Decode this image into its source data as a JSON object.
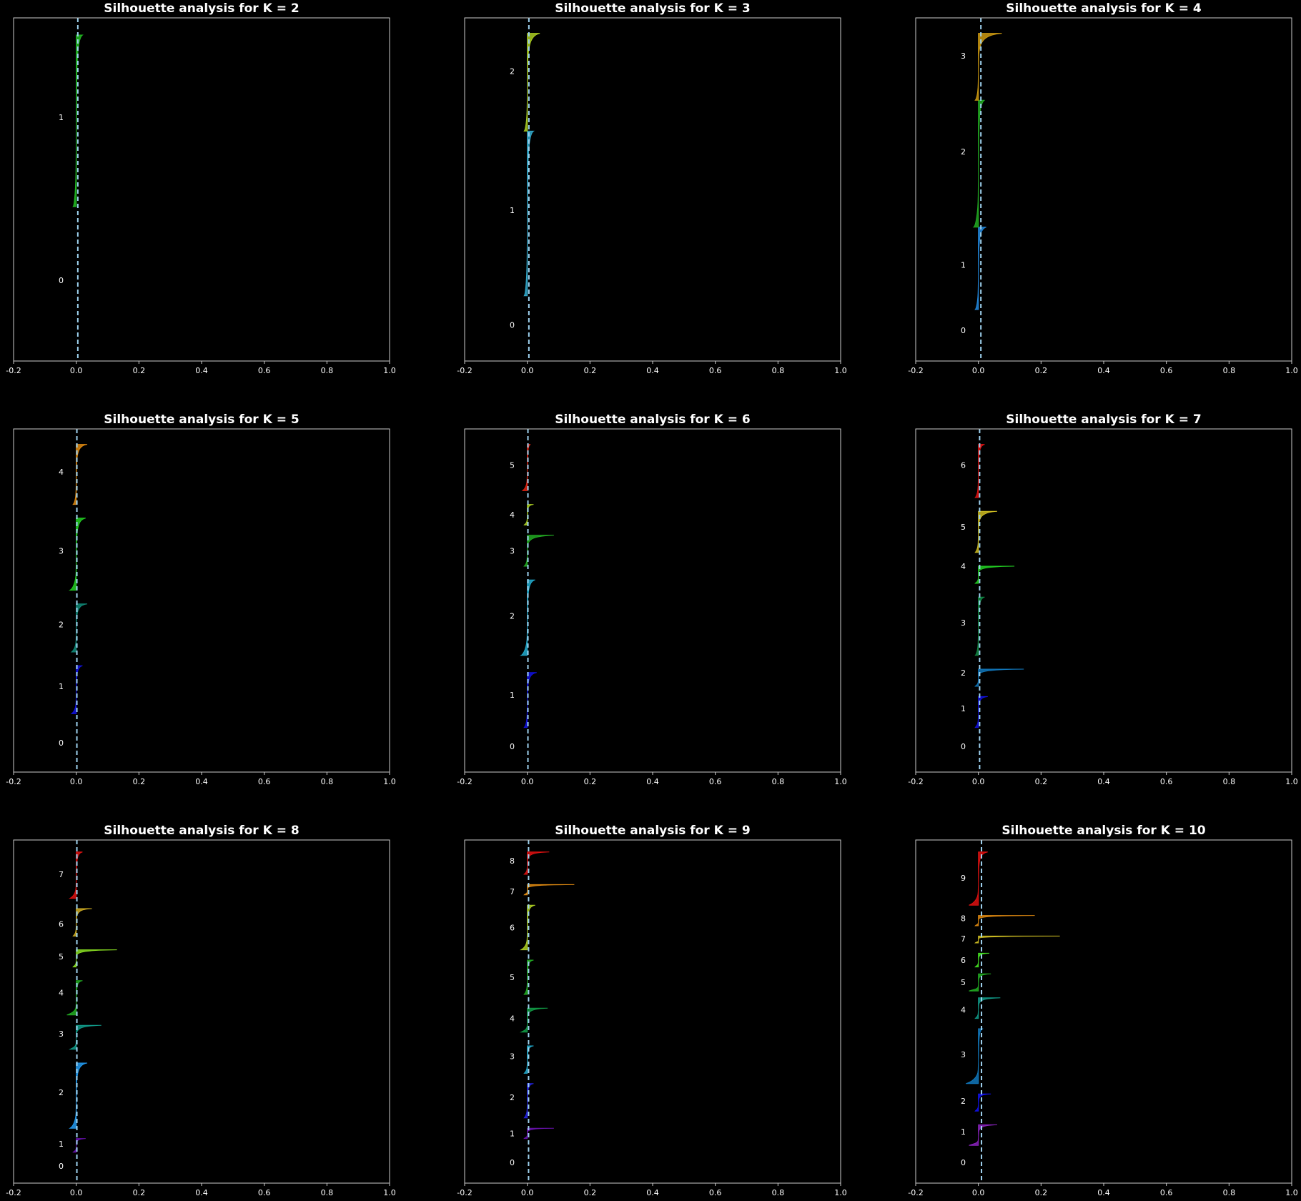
{
  "chart_data": [
    {
      "type": "area",
      "title": "Silhouette analysis for K = 2",
      "xlim": [
        -0.2,
        1.0
      ],
      "xticks": [
        "-0.2",
        "0.0",
        "0.2",
        "0.4",
        "0.6",
        "0.8",
        "1.0"
      ],
      "avg_line_x": 0.005,
      "avg_line_style": "dashed",
      "clusters": [
        {
          "label": "0",
          "label_y": 0.235,
          "color": "#3a0066",
          "y0": 0.05,
          "y1": 0.45,
          "s_max": 0.0,
          "s_min": 0.0
        },
        {
          "label": "1",
          "label_y": 0.71,
          "color": "#22bb22",
          "y0": 0.45,
          "y1": 0.95,
          "s_max": 0.02,
          "s_min": -0.01
        }
      ]
    },
    {
      "type": "area",
      "title": "Silhouette analysis for K = 3",
      "xlim": [
        -0.2,
        1.0
      ],
      "xticks": [
        "-0.2",
        "0.0",
        "0.2",
        "0.4",
        "0.6",
        "0.8",
        "1.0"
      ],
      "avg_line_x": 0.005,
      "avg_line_style": "dashed",
      "clusters": [
        {
          "label": "0",
          "label_y": 0.105,
          "color": "#3a0066",
          "y0": 0.02,
          "y1": 0.19,
          "s_max": 0.0,
          "s_min": 0.0
        },
        {
          "label": "1",
          "label_y": 0.44,
          "color": "#33aacc",
          "y0": 0.19,
          "y1": 0.67,
          "s_max": 0.02,
          "s_min": -0.01
        },
        {
          "label": "2",
          "label_y": 0.845,
          "color": "#aacc22",
          "y0": 0.67,
          "y1": 0.955,
          "s_max": 0.04,
          "s_min": -0.01
        }
      ]
    },
    {
      "type": "area",
      "title": "Silhouette analysis for K = 4",
      "xlim": [
        -0.2,
        1.0
      ],
      "xticks": [
        "-0.2",
        "0.0",
        "0.2",
        "0.4",
        "0.6",
        "0.8",
        "1.0"
      ],
      "avg_line_x": 0.008,
      "avg_line_style": "dashed",
      "clusters": [
        {
          "label": "0",
          "label_y": 0.09,
          "color": "#3a0066",
          "y0": 0.02,
          "y1": 0.15,
          "s_max": 0.0,
          "s_min": 0.0
        },
        {
          "label": "1",
          "label_y": 0.28,
          "color": "#2288dd",
          "y0": 0.15,
          "y1": 0.39,
          "s_max": 0.025,
          "s_min": -0.01
        },
        {
          "label": "2",
          "label_y": 0.61,
          "color": "#22aa22",
          "y0": 0.39,
          "y1": 0.76,
          "s_max": 0.02,
          "s_min": -0.015
        },
        {
          "label": "3",
          "label_y": 0.89,
          "color": "#cc9911",
          "y0": 0.76,
          "y1": 0.955,
          "s_max": 0.075,
          "s_min": -0.01
        }
      ]
    },
    {
      "type": "area",
      "title": "Silhouette analysis for K = 5",
      "xlim": [
        -0.2,
        1.0
      ],
      "xticks": [
        "-0.2",
        "0.0",
        "0.2",
        "0.4",
        "0.6",
        "0.8",
        "1.0"
      ],
      "avg_line_x": 0.002,
      "avg_line_style": "dashed",
      "clusters": [
        {
          "label": "0",
          "label_y": 0.085,
          "color": "#3a0066",
          "y0": 0.02,
          "y1": 0.17,
          "s_max": 0.0,
          "s_min": 0.0
        },
        {
          "label": "1",
          "label_y": 0.25,
          "color": "#1111dd",
          "y0": 0.17,
          "y1": 0.31,
          "s_max": 0.02,
          "s_min": -0.015
        },
        {
          "label": "2",
          "label_y": 0.43,
          "color": "#118877",
          "y0": 0.35,
          "y1": 0.49,
          "s_max": 0.035,
          "s_min": -0.015
        },
        {
          "label": "3",
          "label_y": 0.645,
          "color": "#22cc22",
          "y0": 0.53,
          "y1": 0.74,
          "s_max": 0.03,
          "s_min": -0.02
        },
        {
          "label": "4",
          "label_y": 0.875,
          "color": "#dd8811",
          "y0": 0.78,
          "y1": 0.955,
          "s_max": 0.035,
          "s_min": -0.01
        }
      ]
    },
    {
      "type": "area",
      "title": "Silhouette analysis for K = 6",
      "xlim": [
        -0.2,
        1.0
      ],
      "xticks": [
        "-0.2",
        "0.0",
        "0.2",
        "0.4",
        "0.6",
        "0.8",
        "1.0"
      ],
      "avg_line_x": 0.002,
      "avg_line_style": "dashed",
      "clusters": [
        {
          "label": "0",
          "label_y": 0.075,
          "color": "#3a0066",
          "y0": 0.02,
          "y1": 0.13,
          "s_max": 0.0,
          "s_min": 0.0
        },
        {
          "label": "1",
          "label_y": 0.225,
          "color": "#1111dd",
          "y0": 0.13,
          "y1": 0.29,
          "s_max": 0.03,
          "s_min": -0.01
        },
        {
          "label": "2",
          "label_y": 0.455,
          "color": "#22aacc",
          "y0": 0.34,
          "y1": 0.56,
          "s_max": 0.025,
          "s_min": -0.02
        },
        {
          "label": "3",
          "label_y": 0.645,
          "color": "#22aa22",
          "y0": 0.6,
          "y1": 0.69,
          "s_max": 0.085,
          "s_min": -0.01
        },
        {
          "label": "4",
          "label_y": 0.75,
          "color": "#aacc22",
          "y0": 0.72,
          "y1": 0.78,
          "s_max": 0.02,
          "s_min": -0.01
        },
        {
          "label": "5",
          "label_y": 0.895,
          "color": "#dd2211",
          "y0": 0.82,
          "y1": 0.955,
          "s_max": 0.01,
          "s_min": -0.015
        }
      ]
    },
    {
      "type": "area",
      "title": "Silhouette analysis for K = 7",
      "xlim": [
        -0.2,
        1.0
      ],
      "xticks": [
        "-0.2",
        "0.0",
        "0.2",
        "0.4",
        "0.6",
        "0.8",
        "1.0"
      ],
      "avg_line_x": 0.004,
      "avg_line_style": "dashed",
      "clusters": [
        {
          "label": "0",
          "label_y": 0.075,
          "color": "#3a0066",
          "y0": 0.02,
          "y1": 0.13,
          "s_max": 0.0,
          "s_min": 0.0
        },
        {
          "label": "1",
          "label_y": 0.185,
          "color": "#1111dd",
          "y0": 0.13,
          "y1": 0.22,
          "s_max": 0.03,
          "s_min": -0.01
        },
        {
          "label": "2",
          "label_y": 0.29,
          "color": "#1177bb",
          "y0": 0.25,
          "y1": 0.3,
          "s_max": 0.145,
          "s_min": -0.01
        },
        {
          "label": "3",
          "label_y": 0.435,
          "color": "#118844",
          "y0": 0.34,
          "y1": 0.51,
          "s_max": 0.02,
          "s_min": -0.01
        },
        {
          "label": "4",
          "label_y": 0.6,
          "color": "#22cc22",
          "y0": 0.55,
          "y1": 0.6,
          "s_max": 0.115,
          "s_min": -0.01
        },
        {
          "label": "5",
          "label_y": 0.715,
          "color": "#ccbb22",
          "y0": 0.64,
          "y1": 0.76,
          "s_max": 0.06,
          "s_min": -0.01
        },
        {
          "label": "6",
          "label_y": 0.895,
          "color": "#dd1111",
          "y0": 0.8,
          "y1": 0.955,
          "s_max": 0.02,
          "s_min": -0.01
        }
      ]
    },
    {
      "type": "area",
      "title": "Silhouette analysis for K = 8",
      "xlim": [
        -0.2,
        1.0
      ],
      "xticks": [
        "-0.2",
        "0.0",
        "0.2",
        "0.4",
        "0.6",
        "0.8",
        "1.0"
      ],
      "avg_line_x": 0.002,
      "avg_line_style": "dashed",
      "clusters": [
        {
          "label": "0",
          "label_y": 0.05,
          "color": "#3a0066",
          "y0": 0.02,
          "y1": 0.07,
          "s_max": 0.0,
          "s_min": 0.0
        },
        {
          "label": "1",
          "label_y": 0.115,
          "color": "#6611aa",
          "y0": 0.09,
          "y1": 0.13,
          "s_max": 0.03,
          "s_min": -0.01
        },
        {
          "label": "2",
          "label_y": 0.265,
          "color": "#2299ee",
          "y0": 0.16,
          "y1": 0.35,
          "s_max": 0.035,
          "s_min": -0.02
        },
        {
          "label": "3",
          "label_y": 0.435,
          "color": "#119988",
          "y0": 0.39,
          "y1": 0.46,
          "s_max": 0.08,
          "s_min": -0.02
        },
        {
          "label": "4",
          "label_y": 0.555,
          "color": "#22aa22",
          "y0": 0.49,
          "y1": 0.59,
          "s_max": 0.02,
          "s_min": -0.03
        },
        {
          "label": "5",
          "label_y": 0.66,
          "color": "#88dd22",
          "y0": 0.63,
          "y1": 0.68,
          "s_max": 0.13,
          "s_min": -0.01
        },
        {
          "label": "6",
          "label_y": 0.755,
          "color": "#ccaa22",
          "y0": 0.72,
          "y1": 0.8,
          "s_max": 0.05,
          "s_min": -0.01
        },
        {
          "label": "7",
          "label_y": 0.9,
          "color": "#dd1111",
          "y0": 0.83,
          "y1": 0.965,
          "s_max": 0.02,
          "s_min": -0.02
        }
      ]
    },
    {
      "type": "area",
      "title": "Silhouette analysis for K = 9",
      "xlim": [
        -0.2,
        1.0
      ],
      "xticks": [
        "-0.2",
        "0.0",
        "0.2",
        "0.4",
        "0.6",
        "0.8",
        "1.0"
      ],
      "avg_line_x": 0.004,
      "avg_line_style": "dashed",
      "clusters": [
        {
          "label": "0",
          "label_y": 0.06,
          "color": "#3a0066",
          "y0": 0.02,
          "y1": 0.09,
          "s_max": 0.0,
          "s_min": 0.0
        },
        {
          "label": "1",
          "label_y": 0.145,
          "color": "#6611aa",
          "y0": 0.13,
          "y1": 0.16,
          "s_max": 0.085,
          "s_min": -0.01
        },
        {
          "label": "2",
          "label_y": 0.25,
          "color": "#2222dd",
          "y0": 0.19,
          "y1": 0.29,
          "s_max": 0.02,
          "s_min": -0.01
        },
        {
          "label": "3",
          "label_y": 0.37,
          "color": "#22aacc",
          "y0": 0.32,
          "y1": 0.4,
          "s_max": 0.02,
          "s_min": -0.01
        },
        {
          "label": "4",
          "label_y": 0.48,
          "color": "#119944",
          "y0": 0.44,
          "y1": 0.51,
          "s_max": 0.065,
          "s_min": -0.02
        },
        {
          "label": "5",
          "label_y": 0.6,
          "color": "#22aa22",
          "y0": 0.55,
          "y1": 0.65,
          "s_max": 0.02,
          "s_min": -0.01
        },
        {
          "label": "6",
          "label_y": 0.745,
          "color": "#aacc22",
          "y0": 0.68,
          "y1": 0.81,
          "s_max": 0.025,
          "s_min": -0.02
        },
        {
          "label": "7",
          "label_y": 0.85,
          "color": "#dd8811",
          "y0": 0.84,
          "y1": 0.87,
          "s_max": 0.15,
          "s_min": -0.01
        },
        {
          "label": "8",
          "label_y": 0.94,
          "color": "#dd1111",
          "y0": 0.9,
          "y1": 0.965,
          "s_max": 0.07,
          "s_min": -0.01
        }
      ]
    },
    {
      "type": "area",
      "title": "Silhouette analysis for K = 10",
      "xlim": [
        -0.2,
        1.0
      ],
      "xticks": [
        "-0.2",
        "0.0",
        "0.2",
        "0.4",
        "0.6",
        "0.8",
        "1.0"
      ],
      "avg_line_x": 0.01,
      "avg_line_style": "dashed",
      "clusters": [
        {
          "label": "0",
          "label_y": 0.06,
          "color": "#3a0066",
          "y0": 0.02,
          "y1": 0.1,
          "s_max": 0.0,
          "s_min": 0.0
        },
        {
          "label": "1",
          "label_y": 0.15,
          "color": "#8822bb",
          "y0": 0.11,
          "y1": 0.17,
          "s_max": 0.06,
          "s_min": -0.03
        },
        {
          "label": "2",
          "label_y": 0.24,
          "color": "#1111ee",
          "y0": 0.21,
          "y1": 0.26,
          "s_max": 0.04,
          "s_min": -0.01
        },
        {
          "label": "3",
          "label_y": 0.375,
          "color": "#1177bb",
          "y0": 0.29,
          "y1": 0.45,
          "s_max": 0.015,
          "s_min": -0.04
        },
        {
          "label": "4",
          "label_y": 0.505,
          "color": "#119988",
          "y0": 0.48,
          "y1": 0.54,
          "s_max": 0.07,
          "s_min": -0.01
        },
        {
          "label": "5",
          "label_y": 0.585,
          "color": "#22aa22",
          "y0": 0.56,
          "y1": 0.61,
          "s_max": 0.04,
          "s_min": -0.03
        },
        {
          "label": "6",
          "label_y": 0.65,
          "color": "#44dd22",
          "y0": 0.63,
          "y1": 0.67,
          "s_max": 0.035,
          "s_min": -0.01
        },
        {
          "label": "7",
          "label_y": 0.712,
          "color": "#ccbb22",
          "y0": 0.7,
          "y1": 0.72,
          "s_max": 0.26,
          "s_min": -0.01
        },
        {
          "label": "8",
          "label_y": 0.772,
          "color": "#dd8811",
          "y0": 0.75,
          "y1": 0.78,
          "s_max": 0.18,
          "s_min": -0.01
        },
        {
          "label": "9",
          "label_y": 0.89,
          "color": "#dd1111",
          "y0": 0.81,
          "y1": 0.965,
          "s_max": 0.03,
          "s_min": -0.03
        }
      ]
    }
  ]
}
